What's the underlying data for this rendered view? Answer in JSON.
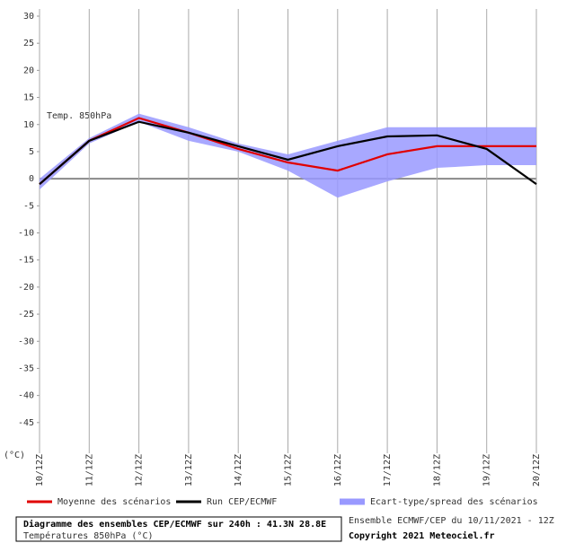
{
  "chart_data": {
    "type": "line",
    "annotation": "Temp. 850hPa",
    "y_unit": "(°C)",
    "categories": [
      "10/12Z",
      "11/12Z",
      "12/12Z",
      "13/12Z",
      "14/12Z",
      "15/12Z",
      "16/12Z",
      "17/12Z",
      "18/12Z",
      "19/12Z",
      "20/12Z"
    ],
    "series": [
      {
        "name": "Moyenne des scénarios",
        "color": "#e00000",
        "values": [
          -1,
          7,
          11.2,
          8.5,
          5.5,
          3,
          1.5,
          4.5,
          6,
          6,
          6
        ]
      },
      {
        "name": "Run CEP/ECMWF",
        "color": "#000000",
        "values": [
          -1,
          7,
          10.5,
          8.5,
          6,
          3.5,
          6,
          7.8,
          8,
          5.5,
          -1
        ]
      }
    ],
    "band": {
      "name": "Ecart-type/spread des scénarios",
      "color": "#9999ff",
      "upper": [
        0,
        7.5,
        12,
        9.5,
        6.5,
        4.5,
        7,
        9.5,
        9.5,
        9.5,
        9.5
      ],
      "lower": [
        -2,
        6.5,
        10.5,
        7,
        5,
        1.5,
        -3.5,
        -0.5,
        2,
        2.5,
        2.5
      ]
    },
    "ylim": [
      -50,
      30
    ],
    "yticks": [
      30,
      25,
      20,
      15,
      10,
      5,
      0,
      -5,
      -10,
      -15,
      -20,
      -25,
      -30,
      -35,
      -40,
      -45
    ],
    "grid": true,
    "footer": {
      "title": "Diagramme des ensembles CEP/ECMWF sur 240h : 41.3N 28.8E",
      "subtitle": "Températures 850hPa (°C)",
      "run": "Ensemble ECMWF/CEP du 10/11/2021 - 12Z",
      "copyright": "Copyright 2021 Meteociel.fr"
    }
  }
}
